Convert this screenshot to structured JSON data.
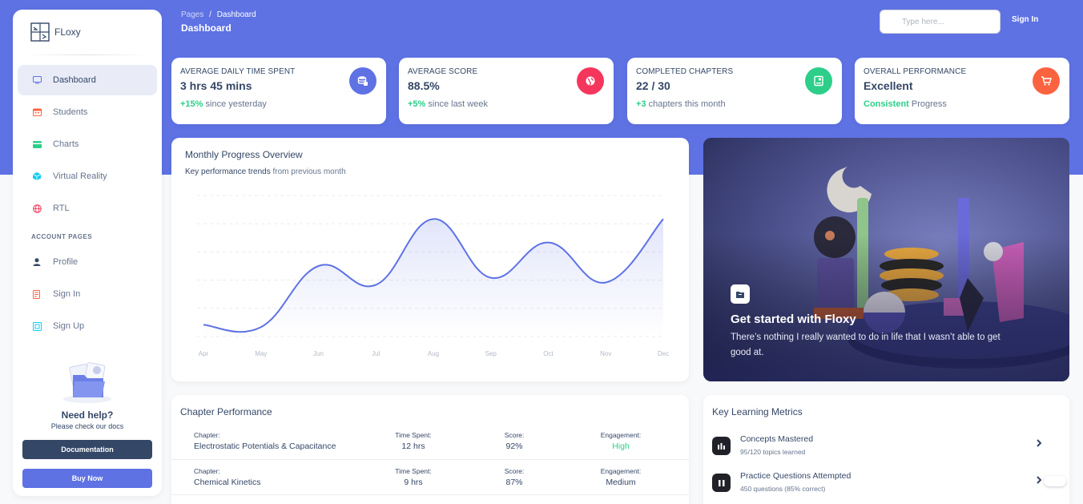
{
  "brand": {
    "name": "FLoxy"
  },
  "sidebar": {
    "items": [
      {
        "label": "Dashboard",
        "icon": "monitor-icon",
        "color": "#5e72e4"
      },
      {
        "label": "Students",
        "icon": "calendar-icon",
        "color": "#fb6340"
      },
      {
        "label": "Charts",
        "icon": "credit-card-icon",
        "color": "#2dce89"
      },
      {
        "label": "Virtual Reality",
        "icon": "cube-icon",
        "color": "#11cdef"
      },
      {
        "label": "RTL",
        "icon": "globe-icon",
        "color": "#f5365c"
      }
    ],
    "section_label": "ACCOUNT PAGES",
    "account_items": [
      {
        "label": "Profile",
        "icon": "user-icon",
        "color": "#344767"
      },
      {
        "label": "Sign In",
        "icon": "document-icon",
        "color": "#fb6340"
      },
      {
        "label": "Sign Up",
        "icon": "collection-icon",
        "color": "#11cdef"
      }
    ],
    "help": {
      "title": "Need help?",
      "subtitle": "Please check our docs",
      "doc_button": "Documentation",
      "buy_button": "Buy Now"
    }
  },
  "header": {
    "breadcrumb_root": "Pages",
    "breadcrumb_sep": "/",
    "breadcrumb_current": "Dashboard",
    "title": "Dashboard",
    "search_placeholder": "Type here...",
    "signin_label": "Sign In"
  },
  "stats": [
    {
      "label": "AVERAGE DAILY TIME SPENT",
      "value": "3 hrs 45 mins",
      "highlight": "+15%",
      "foot": " since yesterday",
      "icon": "coins-icon",
      "color": "#5e72e4"
    },
    {
      "label": "AVERAGE SCORE",
      "value": "88.5%",
      "highlight": "+5%",
      "foot": " since last week",
      "icon": "world-icon",
      "color": "#f5365c"
    },
    {
      "label": "COMPLETED CHAPTERS",
      "value": "22 / 30",
      "highlight": "+3",
      "foot": " chapters this month",
      "icon": "paper-icon",
      "color": "#2dce89"
    },
    {
      "label": "OVERALL PERFORMANCE",
      "value": "Excellent",
      "highlight": "Consistent",
      "foot": " Progress",
      "icon": "cart-icon",
      "color": "#fb6340"
    }
  ],
  "chart_data": {
    "type": "line",
    "title": "Monthly Progress Overview",
    "subtitle_bold": "Key performance trends",
    "subtitle_rest": " from previous month",
    "categories": [
      "Apr",
      "May",
      "Jun",
      "Jul",
      "Aug",
      "Sep",
      "Oct",
      "Nov",
      "Dec"
    ],
    "values": [
      50,
      40,
      300,
      220,
      500,
      250,
      400,
      230,
      500
    ],
    "ylim": [
      0,
      600
    ],
    "grid": true,
    "color": "#5e72e4"
  },
  "hero": {
    "title": "Get started with Floxy",
    "text": "There’s nothing I really wanted to do in life that I wasn’t able to get good at."
  },
  "chapters": {
    "title": "Chapter Performance",
    "labels": {
      "chapter": "Chapter:",
      "time": "Time Spent:",
      "score": "Score:",
      "engagement": "Engagement:"
    },
    "rows": [
      {
        "chapter": "Electrostatic Potentials & Capacitance",
        "time": "12 hrs",
        "score": "92%",
        "engagement": "High"
      },
      {
        "chapter": "Chemical Kinetics",
        "time": "9 hrs",
        "score": "87%",
        "engagement": "Medium"
      }
    ]
  },
  "metrics": {
    "title": "Key Learning Metrics",
    "items": [
      {
        "name": "Concepts Mastered",
        "sub": "95/120 topics learned"
      },
      {
        "name": "Practice Questions Attempted",
        "sub": "450 questions (85% correct)"
      }
    ]
  }
}
